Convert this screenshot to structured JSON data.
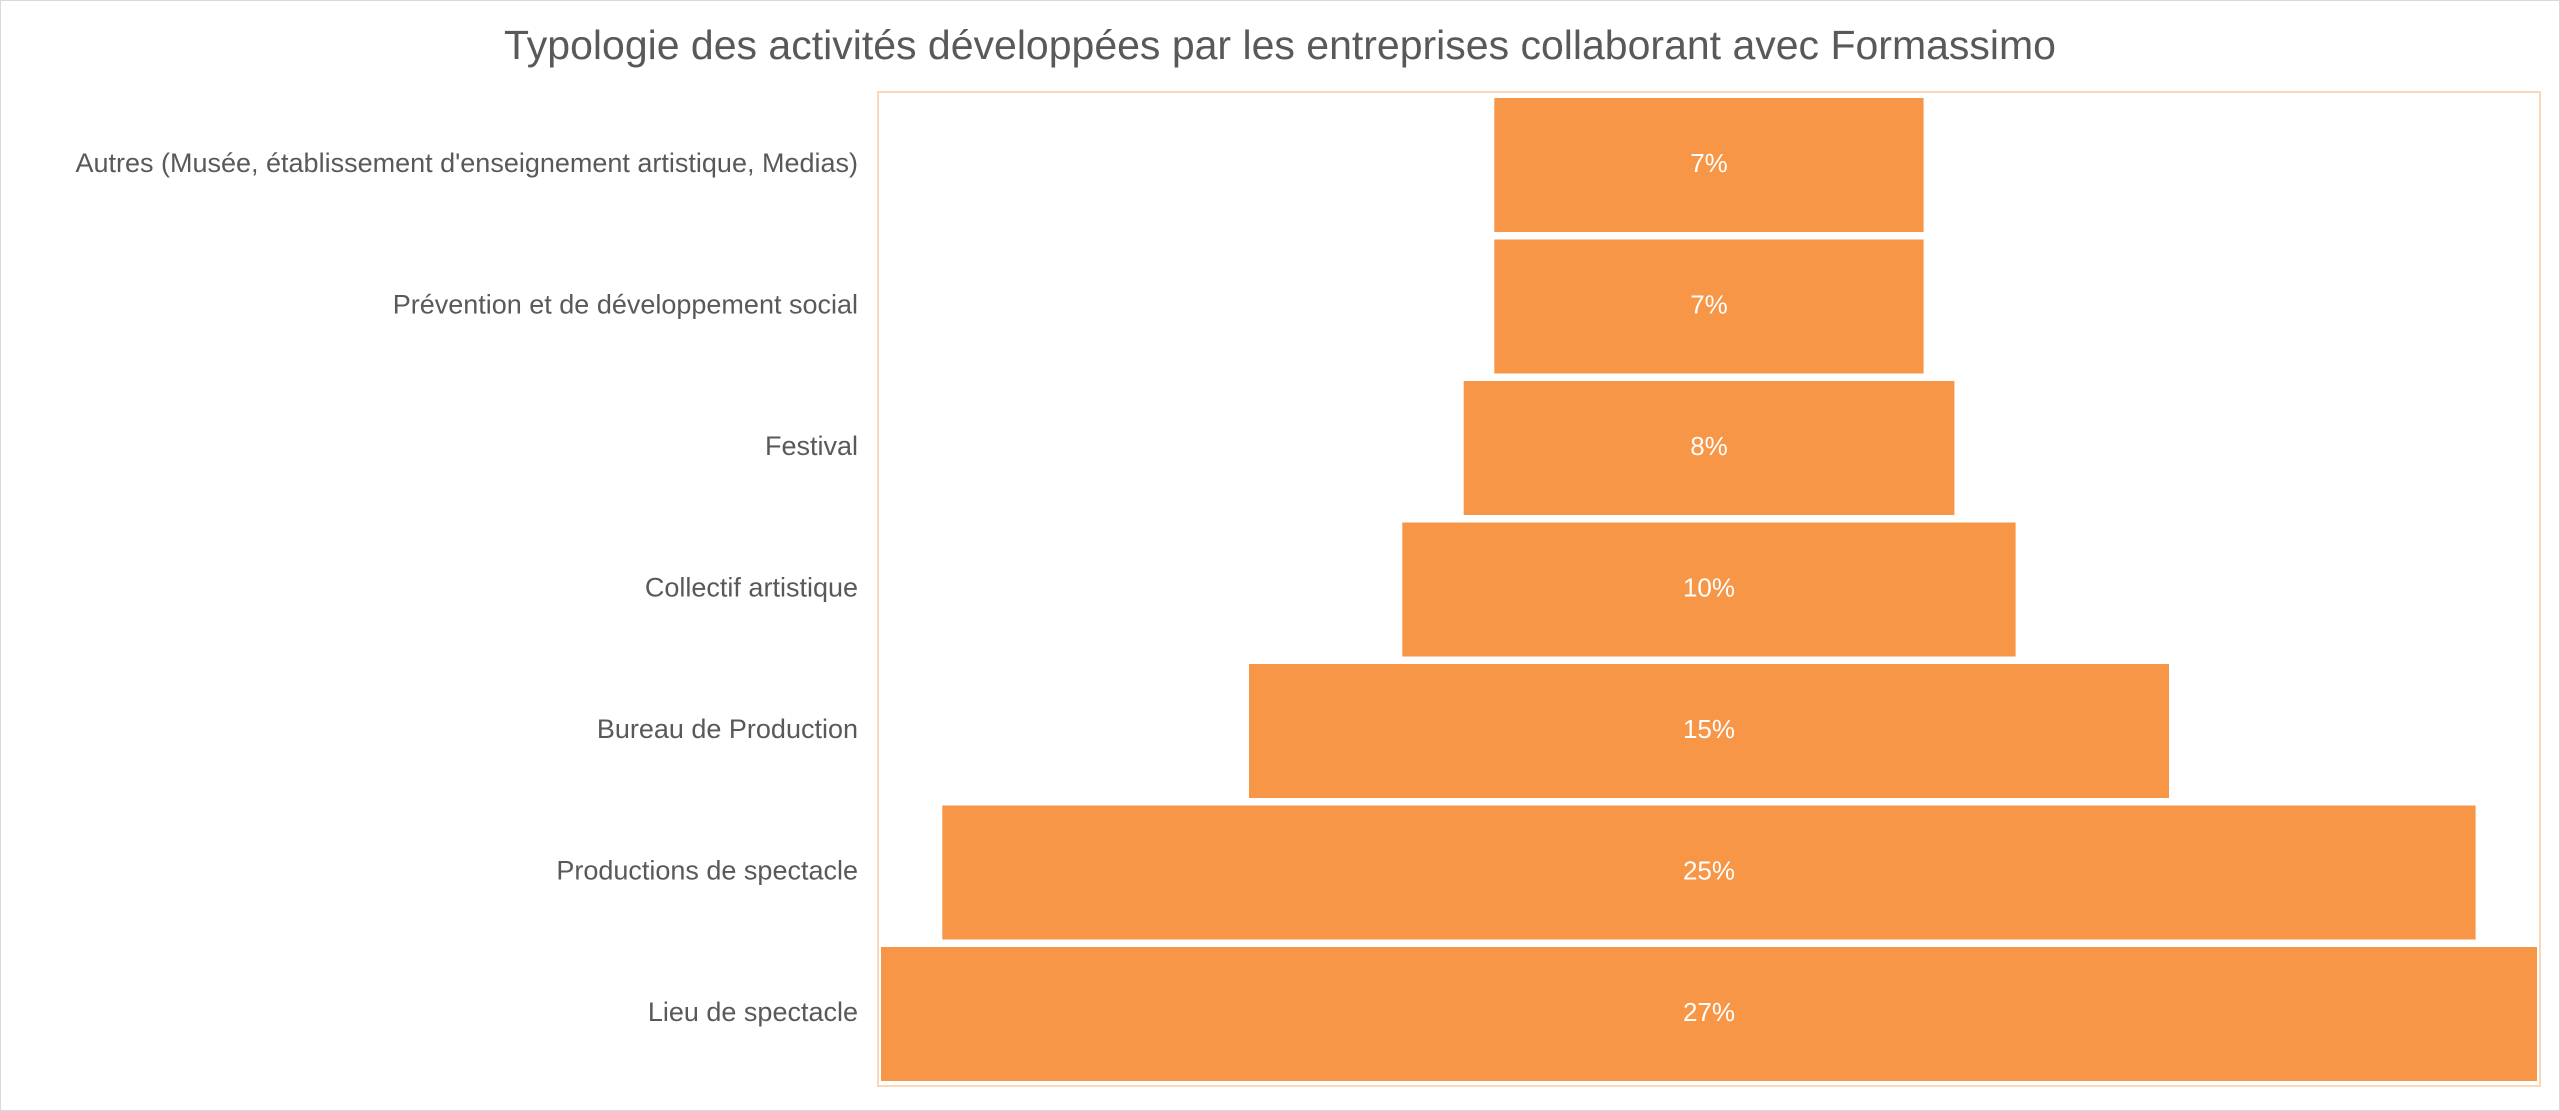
{
  "chart_data": {
    "type": "bar",
    "subtype": "funnel",
    "orientation": "horizontal",
    "title": "Typologie des activités développées par les entreprises collaborant avec Formassimo",
    "categories": [
      "Autres (Musée, établissement d'enseignement artistique, Medias)",
      "Prévention et de développement social",
      "Festival",
      "Collectif artistique",
      "Bureau de Production",
      "Productions de spectacle",
      "Lieu de spectacle"
    ],
    "values": [
      7,
      7,
      8,
      10,
      15,
      25,
      27
    ],
    "data_labels": [
      "7%",
      "7%",
      "8%",
      "10%",
      "15%",
      "25%",
      "27%"
    ],
    "unit": "%",
    "xlabel": "",
    "ylabel": "",
    "grid": false,
    "legend": "none",
    "colors": {
      "bar": "#F79646",
      "plot_border": "#FAD7B8",
      "text": "#595959",
      "bar_text": "#FFFFFF"
    }
  }
}
